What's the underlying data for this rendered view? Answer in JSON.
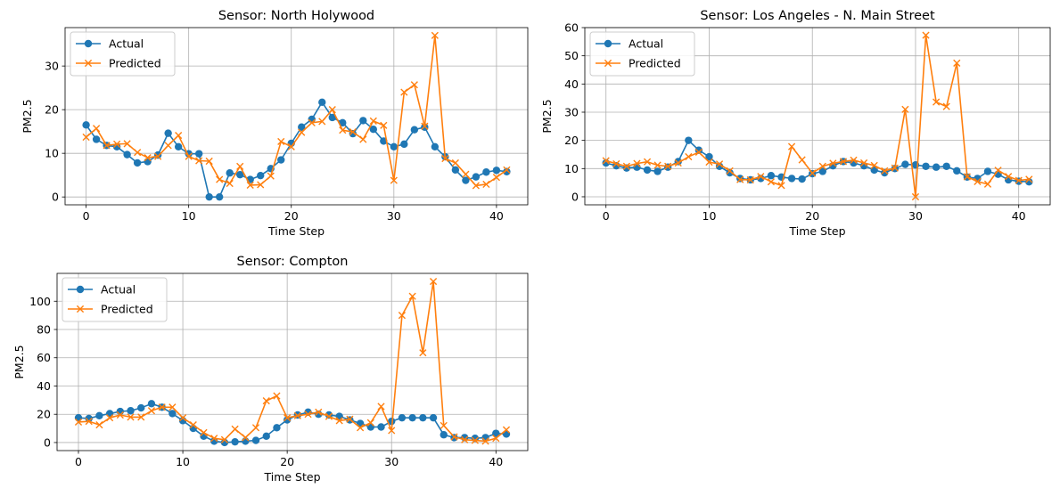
{
  "chart_data": [
    {
      "type": "line",
      "title": "Sensor: North Holywood",
      "xlabel": "Time Step",
      "ylabel": "PM2.5",
      "xlim": [
        -2.05,
        43.05
      ],
      "ylim": [
        -1.8,
        38.8
      ],
      "xticks": [
        0,
        10,
        20,
        30,
        40
      ],
      "yticks": [
        0,
        10,
        20,
        30
      ],
      "grid": true,
      "legend": "top-left",
      "series": [
        {
          "name": "Actual",
          "color": "#1f77b4",
          "marker": "circle",
          "values": [
            16.5,
            13.2,
            11.8,
            11.5,
            9.7,
            7.8,
            8.1,
            9.6,
            14.6,
            11.5,
            9.9,
            9.9,
            0.0,
            0.0,
            5.5,
            5.1,
            4.0,
            4.9,
            6.5,
            8.5,
            12.3,
            16.0,
            17.8,
            21.7,
            18.2,
            17.0,
            14.5,
            17.5,
            15.5,
            12.8,
            11.5,
            12.1,
            15.4,
            16.0,
            11.5,
            9.2,
            6.2,
            3.8,
            4.6,
            5.7,
            6.1,
            5.8
          ]
        },
        {
          "name": "Predicted",
          "color": "#ff7f0e",
          "marker": "x",
          "values": [
            13.7,
            15.7,
            11.8,
            12.1,
            12.2,
            10.2,
            9.0,
            9.3,
            11.8,
            14.1,
            9.3,
            8.3,
            8.2,
            4.0,
            3.1,
            7.0,
            2.7,
            2.8,
            4.8,
            12.7,
            11.5,
            14.8,
            17.0,
            17.3,
            20.0,
            15.3,
            14.9,
            13.2,
            17.4,
            16.4,
            3.8,
            24.0,
            25.7,
            16.2,
            37.0,
            8.8,
            7.8,
            5.2,
            2.6,
            2.9,
            4.5,
            6.2
          ]
        }
      ]
    },
    {
      "type": "line",
      "title": "Sensor: Los Angeles - N. Main Street",
      "xlabel": "Time Step",
      "ylabel": "PM2.5",
      "xlim": [
        -2.05,
        43.05
      ],
      "ylim": [
        -2.85,
        60.0
      ],
      "xticks": [
        0,
        10,
        20,
        30,
        40
      ],
      "yticks": [
        0,
        10,
        20,
        30,
        40,
        50,
        60
      ],
      "grid": true,
      "legend": "top-left",
      "series": [
        {
          "name": "Actual",
          "color": "#1f77b4",
          "marker": "circle",
          "values": [
            12.0,
            11.0,
            10.2,
            10.5,
            9.5,
            9.0,
            10.5,
            12.5,
            20.0,
            16.5,
            14.2,
            10.8,
            8.5,
            6.5,
            6.0,
            6.5,
            7.5,
            7.0,
            6.5,
            6.3,
            8.2,
            9.0,
            11.0,
            12.5,
            12.0,
            11.0,
            9.5,
            8.5,
            10.0,
            11.5,
            11.3,
            10.8,
            10.5,
            10.8,
            9.2,
            7.0,
            6.5,
            9.0,
            8.0,
            6.0,
            5.5,
            5.3
          ]
        },
        {
          "name": "Predicted",
          "color": "#ff7f0e",
          "marker": "x",
          "values": [
            12.8,
            11.7,
            10.8,
            11.8,
            12.4,
            11.2,
            10.8,
            12.0,
            14.2,
            15.8,
            12.3,
            11.6,
            9.2,
            6.1,
            6.0,
            7.2,
            5.3,
            4.0,
            17.8,
            13.1,
            8.4,
            10.8,
            11.9,
            12.5,
            13.0,
            12.0,
            11.1,
            9.2,
            10.2,
            31.0,
            0.0,
            57.3,
            33.6,
            32.0,
            47.4,
            7.1,
            5.4,
            4.5,
            9.4,
            7.2,
            5.8,
            6.2
          ]
        }
      ]
    },
    {
      "type": "line",
      "title": "Sensor: Compton",
      "xlabel": "Time Step",
      "ylabel": "PM2.5",
      "xlim": [
        -2.05,
        43.05
      ],
      "ylim": [
        -5.7,
        119.7
      ],
      "xticks": [
        0,
        10,
        20,
        30,
        40
      ],
      "yticks": [
        0,
        20,
        40,
        60,
        80,
        100
      ],
      "grid": true,
      "legend": "top-left",
      "series": [
        {
          "name": "Actual",
          "color": "#1f77b4",
          "marker": "circle",
          "values": [
            17.5,
            17.0,
            19.0,
            20.5,
            22.0,
            22.5,
            24.5,
            27.5,
            25.0,
            20.5,
            15.5,
            10.0,
            4.5,
            1.0,
            0.0,
            0.5,
            1.0,
            1.5,
            4.5,
            10.5,
            16.0,
            19.5,
            21.5,
            20.0,
            19.5,
            18.5,
            16.0,
            13.5,
            11.0,
            11.0,
            15.0,
            17.5,
            17.5,
            17.5,
            17.5,
            5.5,
            3.5,
            3.5,
            3.0,
            3.5,
            6.5,
            6.0
          ]
        },
        {
          "name": "Predicted",
          "color": "#ff7f0e",
          "marker": "x",
          "values": [
            14.5,
            15.0,
            12.5,
            17.5,
            19.5,
            18.0,
            18.0,
            22.5,
            25.0,
            25.0,
            17.5,
            12.5,
            7.0,
            3.0,
            2.0,
            9.5,
            3.5,
            10.5,
            29.5,
            33.0,
            17.5,
            19.0,
            20.0,
            21.5,
            18.5,
            15.5,
            16.5,
            10.5,
            14.0,
            25.5,
            8.5,
            90.0,
            103.5,
            63.5,
            114.0,
            12.0,
            4.0,
            2.0,
            1.5,
            1.0,
            3.0,
            9.0
          ]
        }
      ]
    }
  ]
}
